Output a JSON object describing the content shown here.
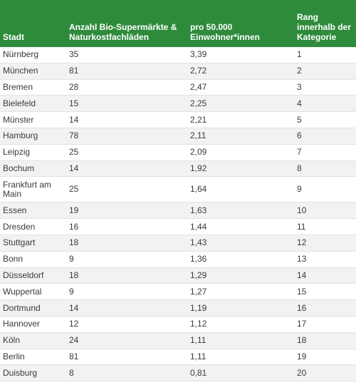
{
  "headers": {
    "city": "Stadt",
    "count": "Anzahl Bio-Supermärkte & Naturkostfachläden",
    "per": "pro 50.000 Einwohner*innen",
    "rank": "Rang innerhalb der Kategorie"
  },
  "rows": [
    {
      "city": "Nürnberg",
      "count": "35",
      "per": "3,39",
      "rank": "1"
    },
    {
      "city": "München",
      "count": "81",
      "per": "2,72",
      "rank": "2"
    },
    {
      "city": "Bremen",
      "count": "28",
      "per": "2,47",
      "rank": "3"
    },
    {
      "city": "Bielefeld",
      "count": "15",
      "per": "2,25",
      "rank": "4"
    },
    {
      "city": "Münster",
      "count": "14",
      "per": "2,21",
      "rank": "5"
    },
    {
      "city": "Hamburg",
      "count": "78",
      "per": "2,11",
      "rank": "6"
    },
    {
      "city": "Leipzig",
      "count": "25",
      "per": "2,09",
      "rank": "7"
    },
    {
      "city": "Bochum",
      "count": "14",
      "per": "1,92",
      "rank": "8"
    },
    {
      "city": "Frankfurt am Main",
      "count": "25",
      "per": "1,64",
      "rank": "9"
    },
    {
      "city": "Essen",
      "count": "19",
      "per": "1,63",
      "rank": "10"
    },
    {
      "city": "Dresden",
      "count": "16",
      "per": "1,44",
      "rank": "11"
    },
    {
      "city": "Stuttgart",
      "count": "18",
      "per": "1,43",
      "rank": "12"
    },
    {
      "city": "Bonn",
      "count": "9",
      "per": "1,36",
      "rank": "13"
    },
    {
      "city": "Düsseldorf",
      "count": "18",
      "per": "1,29",
      "rank": "14"
    },
    {
      "city": "Wuppertal",
      "count": "9",
      "per": "1,27",
      "rank": "15"
    },
    {
      "city": "Dortmund",
      "count": "14",
      "per": "1,19",
      "rank": "16"
    },
    {
      "city": "Hannover",
      "count": "12",
      "per": "1,12",
      "rank": "17"
    },
    {
      "city": "Köln",
      "count": "24",
      "per": "1,11",
      "rank": "18"
    },
    {
      "city": "Berlin",
      "count": "81",
      "per": "1,11",
      "rank": "19"
    },
    {
      "city": "Duisburg",
      "count": "8",
      "per": "0,81",
      "rank": "20"
    }
  ],
  "colors": {
    "header_bg": "#2e8b3b",
    "row_alt_bg": "#f2f2f2"
  }
}
